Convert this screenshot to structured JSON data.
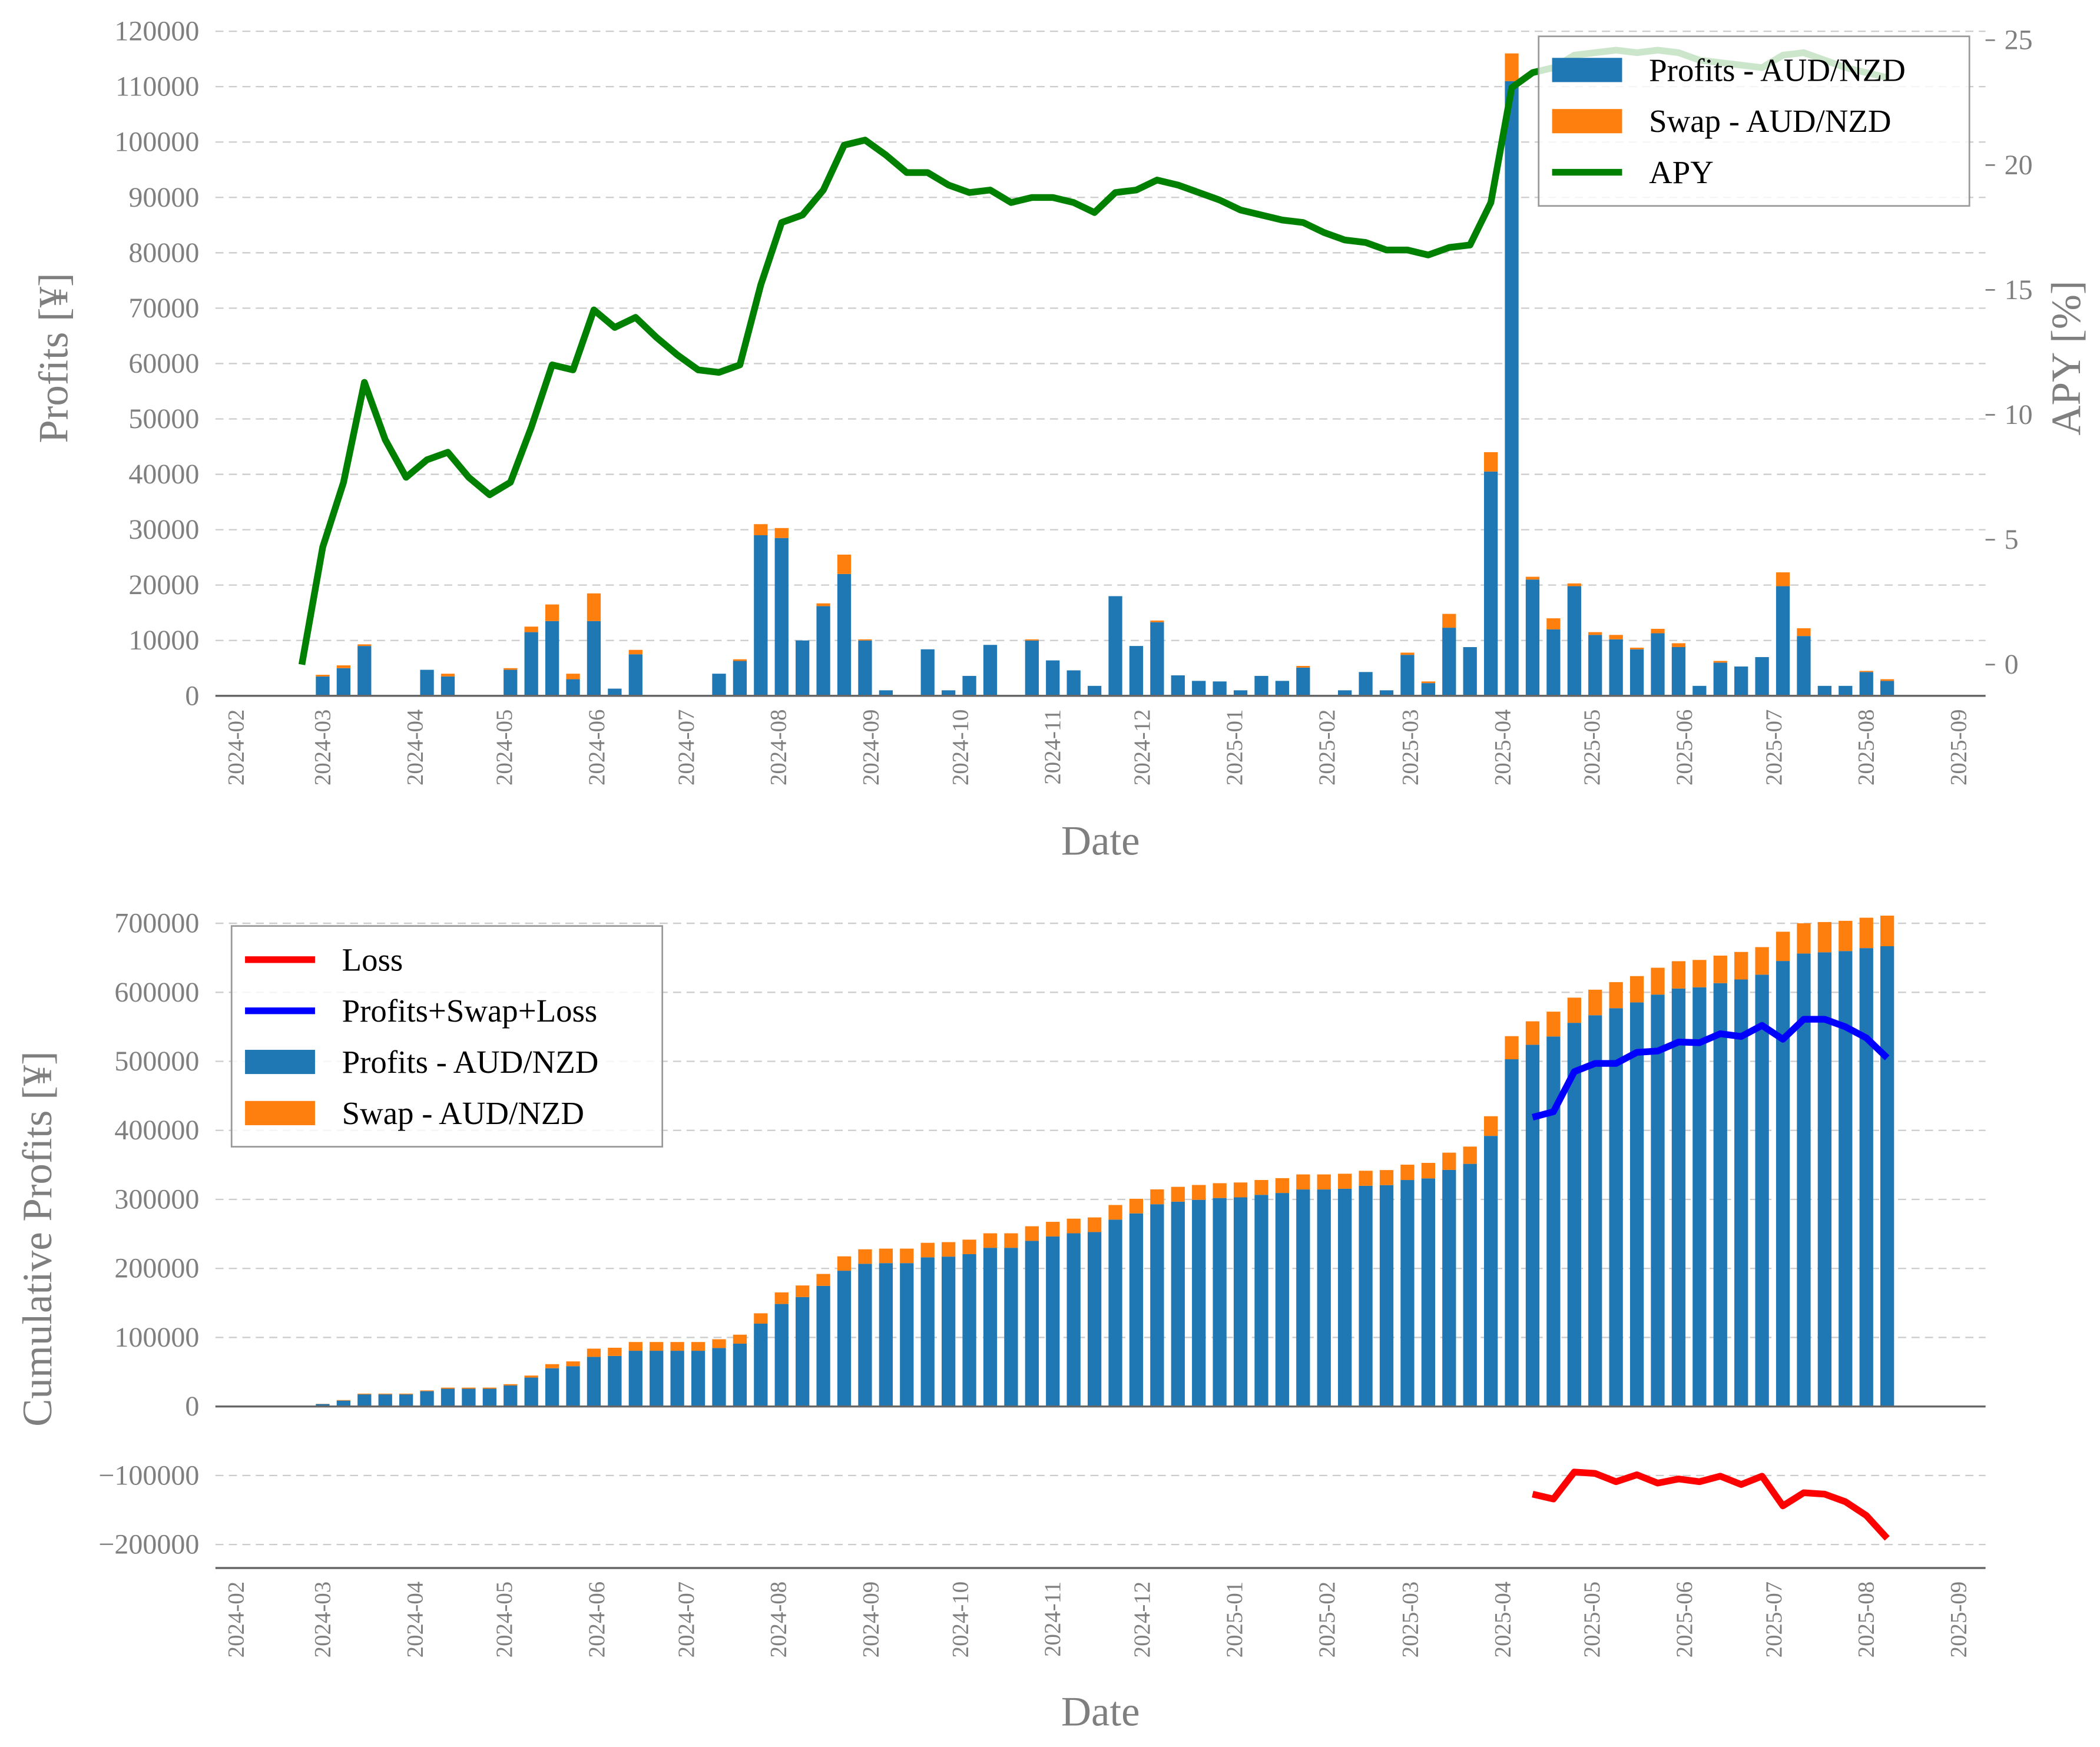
{
  "chart_data": [
    {
      "type": "bar",
      "xlabel": "Date",
      "ylabel": "Profits [¥]",
      "y2label": "APY [%]",
      "x": [
        "2024-02-23",
        "2024-03-01",
        "2024-03-08",
        "2024-03-15",
        "2024-03-22",
        "2024-03-29",
        "2024-04-05",
        "2024-04-12",
        "2024-04-19",
        "2024-04-26",
        "2024-05-03",
        "2024-05-10",
        "2024-05-17",
        "2024-05-24",
        "2024-05-31",
        "2024-06-07",
        "2024-06-14",
        "2024-06-21",
        "2024-06-28",
        "2024-07-05",
        "2024-07-12",
        "2024-07-19",
        "2024-07-26",
        "2024-08-02",
        "2024-08-09",
        "2024-08-16",
        "2024-08-23",
        "2024-08-30",
        "2024-09-06",
        "2024-09-13",
        "2024-09-20",
        "2024-09-27",
        "2024-10-04",
        "2024-10-11",
        "2024-10-18",
        "2024-10-25",
        "2024-11-01",
        "2024-11-08",
        "2024-11-15",
        "2024-11-22",
        "2024-11-29",
        "2024-12-06",
        "2024-12-13",
        "2024-12-20",
        "2024-12-27",
        "2025-01-03",
        "2025-01-10",
        "2025-01-17",
        "2025-01-24",
        "2025-01-31",
        "2025-02-07",
        "2025-02-14",
        "2025-02-21",
        "2025-02-28",
        "2025-03-07",
        "2025-03-14",
        "2025-03-21",
        "2025-03-28",
        "2025-04-04",
        "2025-04-11",
        "2025-04-18",
        "2025-04-25",
        "2025-05-02",
        "2025-05-09",
        "2025-05-16",
        "2025-05-23",
        "2025-05-30",
        "2025-06-06",
        "2025-06-13",
        "2025-06-20",
        "2025-06-27",
        "2025-07-04",
        "2025-07-11",
        "2025-07-18",
        "2025-07-25",
        "2025-08-01",
        "2025-08-08"
      ],
      "series": [
        {
          "name": "Profits - AUD/NZD",
          "color": "#1f77b4",
          "values": [
            0,
            3500,
            5000,
            9000,
            0,
            0,
            4700,
            3500,
            0,
            0,
            4700,
            11500,
            13500,
            3000,
            13500,
            1300,
            7500,
            0,
            0,
            0,
            4000,
            6300,
            29000,
            28500,
            10000,
            16200,
            22000,
            10000,
            1000,
            0,
            8400,
            1000,
            3600,
            9200,
            0,
            10000,
            6400,
            4600,
            1800,
            18000,
            9000,
            13300,
            3700,
            2700,
            2600,
            1000,
            3600,
            2700,
            5100,
            0,
            1000,
            4300,
            1000,
            7400,
            2300,
            12300,
            8800,
            40500,
            111000,
            21000,
            12000,
            19800,
            11000,
            10200,
            8400,
            11300,
            8800,
            1800,
            6000,
            5300,
            7000,
            19800,
            10800,
            1800,
            1800,
            4300,
            2700
          ]
        },
        {
          "name": "Swap - AUD/NZD",
          "color": "#ff7f0e",
          "values": [
            0,
            300,
            500,
            300,
            0,
            0,
            0,
            500,
            0,
            0,
            300,
            1000,
            3000,
            1000,
            5000,
            0,
            800,
            0,
            0,
            0,
            0,
            300,
            2000,
            1800,
            0,
            500,
            3500,
            200,
            0,
            0,
            0,
            0,
            0,
            0,
            0,
            200,
            0,
            0,
            0,
            0,
            0,
            300,
            0,
            0,
            0,
            0,
            0,
            0,
            300,
            0,
            0,
            0,
            0,
            400,
            300,
            2500,
            0,
            3500,
            5000,
            500,
            2000,
            500,
            500,
            800,
            300,
            800,
            700,
            0,
            300,
            0,
            0,
            2500,
            1400,
            0,
            0,
            200,
            300
          ]
        },
        {
          "name": "APY",
          "type": "line",
          "axis": "y2",
          "color": "#008000",
          "values": [
            0,
            4.7,
            7.3,
            11.3,
            9.0,
            7.5,
            8.2,
            8.5,
            7.5,
            6.8,
            7.3,
            9.5,
            12.0,
            11.8,
            14.2,
            13.5,
            13.9,
            13.1,
            12.4,
            11.8,
            11.7,
            12.0,
            15.2,
            17.7,
            18.0,
            19.0,
            20.8,
            21.0,
            20.4,
            19.7,
            19.7,
            19.2,
            18.9,
            19.0,
            18.5,
            18.7,
            18.7,
            18.5,
            18.1,
            18.9,
            19.0,
            19.4,
            19.2,
            18.9,
            18.6,
            18.2,
            18.0,
            17.8,
            17.7,
            17.3,
            17.0,
            16.9,
            16.6,
            16.6,
            16.4,
            16.7,
            16.8,
            18.5,
            23.1,
            23.7,
            23.9,
            24.4,
            24.5,
            24.6,
            24.5,
            24.6,
            24.5,
            24.2,
            24.1,
            24.0,
            23.9,
            24.4,
            24.5,
            24.2,
            23.9,
            23.7,
            23.5
          ]
        }
      ],
      "xlim": [
        "2024-01-25",
        "2025-09-10"
      ],
      "xticks": [
        "2024-02",
        "2024-03",
        "2024-04",
        "2024-05",
        "2024-06",
        "2024-07",
        "2024-08",
        "2024-09",
        "2024-10",
        "2024-11",
        "2024-12",
        "2025-01",
        "2025-02",
        "2025-03",
        "2025-04",
        "2025-05",
        "2025-06",
        "2025-07",
        "2025-08",
        "2025-09"
      ],
      "ylim": [
        0,
        122000
      ],
      "yticks": [
        0,
        10000,
        20000,
        30000,
        40000,
        50000,
        60000,
        70000,
        80000,
        90000,
        100000,
        110000,
        120000
      ],
      "y2lim": [
        -1.25,
        25.8
      ],
      "y2ticks": [
        0,
        5,
        10,
        15,
        20,
        25
      ],
      "grid": true,
      "legend": "upper right"
    },
    {
      "type": "bar",
      "xlabel": "Date",
      "ylabel": "Cumulative Profits [¥]",
      "x": [
        "2024-02-23",
        "2024-03-01",
        "2024-03-08",
        "2024-03-15",
        "2024-03-22",
        "2024-03-29",
        "2024-04-05",
        "2024-04-12",
        "2024-04-19",
        "2024-04-26",
        "2024-05-03",
        "2024-05-10",
        "2024-05-17",
        "2024-05-24",
        "2024-05-31",
        "2024-06-07",
        "2024-06-14",
        "2024-06-21",
        "2024-06-28",
        "2024-07-05",
        "2024-07-12",
        "2024-07-19",
        "2024-07-26",
        "2024-08-02",
        "2024-08-09",
        "2024-08-16",
        "2024-08-23",
        "2024-08-30",
        "2024-09-06",
        "2024-09-13",
        "2024-09-20",
        "2024-09-27",
        "2024-10-04",
        "2024-10-11",
        "2024-10-18",
        "2024-10-25",
        "2024-11-01",
        "2024-11-08",
        "2024-11-15",
        "2024-11-22",
        "2024-11-29",
        "2024-12-06",
        "2024-12-13",
        "2024-12-20",
        "2024-12-27",
        "2025-01-03",
        "2025-01-10",
        "2025-01-17",
        "2025-01-24",
        "2025-01-31",
        "2025-02-07",
        "2025-02-14",
        "2025-02-21",
        "2025-02-28",
        "2025-03-07",
        "2025-03-14",
        "2025-03-21",
        "2025-03-28",
        "2025-04-04",
        "2025-04-11",
        "2025-04-18",
        "2025-04-25",
        "2025-05-02",
        "2025-05-09",
        "2025-05-16",
        "2025-05-23",
        "2025-05-30",
        "2025-06-06",
        "2025-06-13",
        "2025-06-20",
        "2025-06-27",
        "2025-07-04",
        "2025-07-11",
        "2025-07-18",
        "2025-07-25",
        "2025-08-01",
        "2025-08-08"
      ],
      "series": [
        {
          "name": "Loss",
          "type": "line",
          "color": "#ff0000",
          "values": [
            null,
            null,
            null,
            null,
            null,
            null,
            null,
            null,
            null,
            null,
            null,
            null,
            null,
            null,
            null,
            null,
            null,
            null,
            null,
            null,
            null,
            null,
            null,
            null,
            null,
            null,
            null,
            null,
            null,
            null,
            null,
            null,
            null,
            null,
            null,
            null,
            null,
            null,
            null,
            null,
            null,
            null,
            null,
            null,
            null,
            null,
            null,
            null,
            null,
            null,
            null,
            null,
            null,
            null,
            null,
            null,
            null,
            null,
            null,
            -127000,
            -134000,
            -95000,
            -97000,
            -109000,
            -99000,
            -111000,
            -105000,
            -109000,
            -101000,
            -113000,
            -101000,
            -144000,
            -125000,
            -127000,
            -138000,
            -158000,
            -191000
          ]
        },
        {
          "name": "Profits+Swap+Loss",
          "type": "line",
          "color": "#0000ff",
          "values": [
            null,
            null,
            null,
            null,
            null,
            null,
            null,
            null,
            null,
            null,
            null,
            null,
            null,
            null,
            null,
            null,
            null,
            null,
            null,
            null,
            null,
            null,
            null,
            null,
            null,
            null,
            null,
            null,
            null,
            null,
            null,
            null,
            null,
            null,
            null,
            null,
            null,
            null,
            null,
            null,
            null,
            null,
            null,
            null,
            null,
            null,
            null,
            null,
            null,
            null,
            null,
            null,
            null,
            null,
            null,
            null,
            null,
            null,
            null,
            419000,
            427000,
            485000,
            497000,
            497000,
            513000,
            515000,
            528000,
            527000,
            540000,
            536000,
            552000,
            532000,
            561000,
            561000,
            550000,
            534000,
            505000
          ]
        },
        {
          "name": "Profits - AUD/NZD",
          "color": "#1f77b4",
          "values": [
            0,
            3500,
            8500,
            17500,
            17500,
            17500,
            22200,
            25700,
            25700,
            25700,
            30400,
            41900,
            55400,
            58400,
            71900,
            73200,
            80700,
            80700,
            80700,
            80700,
            84700,
            91000,
            120000,
            148500,
            158500,
            174700,
            196700,
            206700,
            207700,
            207700,
            216100,
            217100,
            220700,
            229900,
            229900,
            239900,
            246300,
            250900,
            252700,
            270700,
            279700,
            293000,
            296700,
            299400,
            302000,
            303000,
            306600,
            309300,
            314400,
            314400,
            315400,
            319700,
            320700,
            328100,
            330400,
            342700,
            351500,
            392000,
            503000,
            524000,
            536000,
            555800,
            566800,
            577000,
            585400,
            596700,
            605500,
            607300,
            613300,
            618600,
            625600,
            645400,
            656200,
            658000,
            659800,
            664100,
            666800
          ]
        },
        {
          "name": "Swap - AUD/NZD",
          "color": "#ff7f0e",
          "values": [
            0,
            300,
            800,
            1100,
            1100,
            1100,
            1100,
            1600,
            1600,
            1600,
            1900,
            2900,
            5900,
            6900,
            11900,
            11900,
            12700,
            12700,
            12700,
            12700,
            12700,
            13000,
            15000,
            16800,
            16800,
            17300,
            20800,
            21000,
            21000,
            21000,
            21000,
            21000,
            21000,
            21000,
            21000,
            21200,
            21200,
            21200,
            21200,
            21200,
            21200,
            21500,
            21500,
            21500,
            21500,
            21500,
            21500,
            21500,
            21800,
            21800,
            21800,
            21800,
            21800,
            22200,
            22500,
            25000,
            25000,
            28500,
            33500,
            34000,
            36000,
            36500,
            37000,
            37800,
            38100,
            38900,
            39600,
            39600,
            39900,
            39900,
            39900,
            42400,
            43800,
            43800,
            43800,
            44000,
            44300
          ]
        }
      ],
      "xlim": [
        "2024-01-25",
        "2025-09-10"
      ],
      "xticks": [
        "2024-02",
        "2024-03",
        "2024-04",
        "2024-05",
        "2024-06",
        "2024-07",
        "2024-08",
        "2024-09",
        "2024-10",
        "2024-11",
        "2024-12",
        "2025-01",
        "2025-02",
        "2025-03",
        "2025-04",
        "2025-05",
        "2025-06",
        "2025-07",
        "2025-08",
        "2025-09"
      ],
      "ylim": [
        -234000,
        719500
      ],
      "yticks": [
        {
          "value": -200000,
          "label": "−200000"
        },
        {
          "value": -100000,
          "label": "−100000"
        },
        0,
        100000,
        200000,
        300000,
        400000,
        500000,
        600000,
        700000
      ],
      "grid": true,
      "legend": "upper left"
    }
  ]
}
